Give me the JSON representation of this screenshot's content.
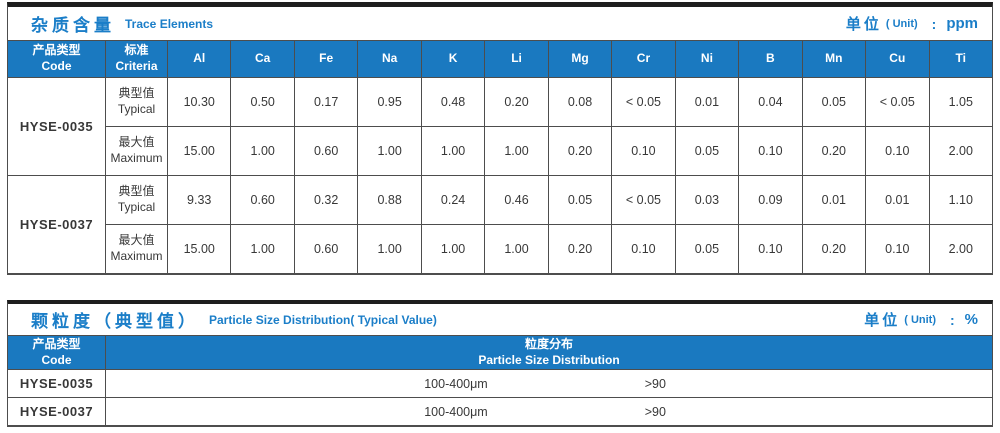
{
  "table1": {
    "title_zh": "杂质含量",
    "title_en": "Trace Elements",
    "unit_label": "单位",
    "unit_paren": "( Unit)",
    "unit_colon": ":",
    "unit_value": "ppm",
    "header": {
      "col1_zh": "产品类型",
      "col1_en": "Code",
      "col2_zh": "标准",
      "col2_en": "Criteria"
    },
    "elements": [
      "Al",
      "Ca",
      "Fe",
      "Na",
      "K",
      "Li",
      "Mg",
      "Cr",
      "Ni",
      "B",
      "Mn",
      "Cu",
      "Ti"
    ],
    "products": [
      {
        "code": "HYSE-0035",
        "rows": [
          {
            "label_zh": "典型值",
            "label_en": "Typical",
            "values": [
              "10.30",
              "0.50",
              "0.17",
              "0.95",
              "0.48",
              "0.20",
              "0.08",
              "< 0.05",
              "0.01",
              "0.04",
              "0.05",
              "< 0.05",
              "1.05"
            ]
          },
          {
            "label_zh": "最大值",
            "label_en": "Maximum",
            "values": [
              "15.00",
              "1.00",
              "0.60",
              "1.00",
              "1.00",
              "1.00",
              "0.20",
              "0.10",
              "0.05",
              "0.10",
              "0.20",
              "0.10",
              "2.00"
            ]
          }
        ]
      },
      {
        "code": "HYSE-0037",
        "rows": [
          {
            "label_zh": "典型值",
            "label_en": "Typical",
            "values": [
              "9.33",
              "0.60",
              "0.32",
              "0.88",
              "0.24",
              "0.46",
              "0.05",
              "< 0.05",
              "0.03",
              "0.09",
              "0.01",
              "0.01",
              "1.10"
            ]
          },
          {
            "label_zh": "最大值",
            "label_en": "Maximum",
            "values": [
              "15.00",
              "1.00",
              "0.60",
              "1.00",
              "1.00",
              "1.00",
              "0.20",
              "0.10",
              "0.05",
              "0.10",
              "0.20",
              "0.10",
              "2.00"
            ]
          }
        ]
      }
    ]
  },
  "table2": {
    "title_zh": "颗粒度（典型值）",
    "title_en": "Particle Size Distribution( Typical Value)",
    "unit_label": "单位",
    "unit_paren": "( Unit)",
    "unit_colon": ":",
    "unit_value": "%",
    "header": {
      "col1_zh": "产品类型",
      "col1_en": "Code",
      "col2_zh": "粒度分布",
      "col2_en": "Particle Size  Distribution"
    },
    "rows": [
      {
        "code": "HYSE-0035",
        "range": "100-400μm",
        "value": ">90"
      },
      {
        "code": "HYSE-0037",
        "range": "100-400μm",
        "value": ">90"
      }
    ]
  }
}
